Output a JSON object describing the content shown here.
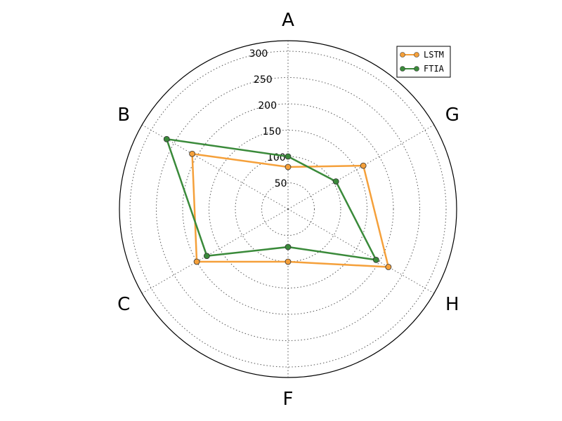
{
  "chart_data": {
    "type": "radar",
    "title": "",
    "categories": [
      "A",
      "B",
      "C",
      "F",
      "H",
      "G"
    ],
    "radial_ticks": [
      "50",
      "100",
      "150",
      "200",
      "250",
      "300"
    ],
    "radial_tick_values": [
      50,
      100,
      150,
      200,
      250,
      300
    ],
    "rmax": 320,
    "grid": true,
    "legend_position": "top-right",
    "series": [
      {
        "name": "LSTM",
        "color": "#f5a03a",
        "values": [
          80,
          210,
          200,
          100,
          220,
          165
        ]
      },
      {
        "name": "FTIA",
        "color": "#3a8a3a",
        "values": [
          100,
          266,
          178,
          72,
          193,
          105
        ]
      }
    ]
  }
}
